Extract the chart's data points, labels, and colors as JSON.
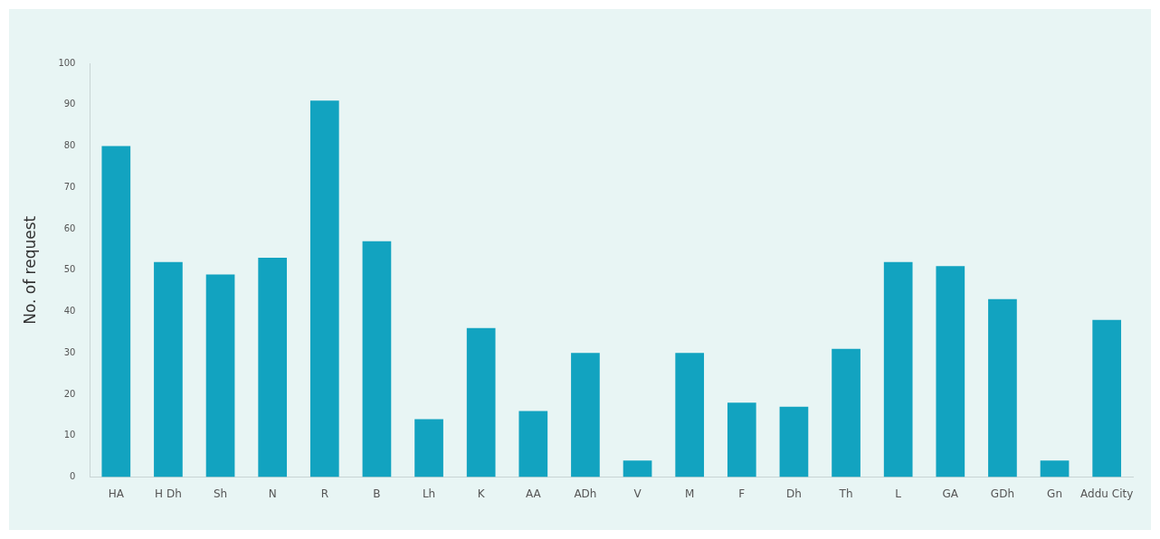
{
  "chart_data": {
    "type": "bar",
    "ylabel": "No. of request",
    "categories": [
      "HA",
      "H Dh",
      "Sh",
      "N",
      "R",
      "B",
      "Lh",
      "K",
      "AA",
      "ADh",
      "V",
      "M",
      "F",
      "Dh",
      "Th",
      "L",
      "GA",
      "GDh",
      "Gn",
      "Addu City"
    ],
    "values": [
      80,
      52,
      49,
      53,
      91,
      57,
      14,
      36,
      16,
      30,
      4,
      30,
      18,
      17,
      31,
      52,
      51,
      43,
      4,
      38
    ],
    "color": "#12a3c0",
    "ylim": [
      0,
      100
    ],
    "yticks": [
      0,
      10,
      20,
      30,
      40,
      50,
      60,
      70,
      80,
      90,
      100
    ],
    "grid": false
  }
}
